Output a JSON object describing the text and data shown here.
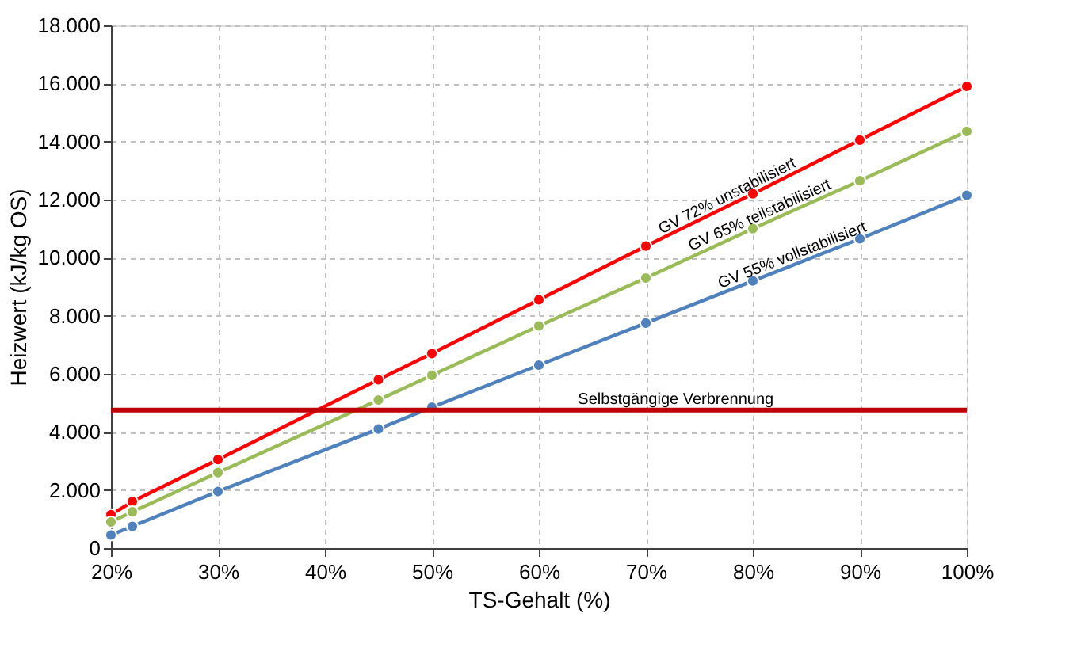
{
  "chart_data": {
    "type": "line",
    "xlabel": "TS-Gehalt (%)",
    "ylabel": "Heizwert (kJ/kg OS)",
    "x": [
      20,
      22,
      30,
      45,
      50,
      60,
      70,
      80,
      90,
      100
    ],
    "series": [
      {
        "name": "GV 72% unstabilisiert",
        "color": "#ff0000",
        "values": [
          1150,
          1600,
          3050,
          5800,
          6700,
          8550,
          10400,
          12200,
          14050,
          15900
        ]
      },
      {
        "name": "GV 65% teilstabilisiert",
        "color": "#9bbb59",
        "values": [
          900,
          1250,
          2600,
          5100,
          5950,
          7650,
          9300,
          11000,
          12650,
          14350
        ]
      },
      {
        "name": "GV 55% vollstabilisiert",
        "color": "#4f81bd",
        "values": [
          450,
          750,
          1950,
          4100,
          4850,
          6300,
          7750,
          9200,
          10650,
          12150
        ]
      }
    ],
    "xlim": [
      20,
      100
    ],
    "xticks": [
      {
        "value": 20,
        "label": "20%"
      },
      {
        "value": 30,
        "label": "30%"
      },
      {
        "value": 40,
        "label": "40%"
      },
      {
        "value": 50,
        "label": "50%"
      },
      {
        "value": 60,
        "label": "60%"
      },
      {
        "value": 70,
        "label": "70%"
      },
      {
        "value": 80,
        "label": "80%"
      },
      {
        "value": 90,
        "label": "90%"
      },
      {
        "value": 100,
        "label": "100%"
      }
    ],
    "ylim": [
      0,
      18000
    ],
    "yticks": [
      0,
      {
        "value": 2000,
        "label": "2.000"
      },
      {
        "value": 4000,
        "label": "4.000"
      },
      {
        "value": 6000,
        "label": "6.000"
      },
      {
        "value": 8000,
        "label": "8.000"
      },
      {
        "value": 10000,
        "label": "10.000"
      },
      {
        "value": 12000,
        "label": "12.000"
      },
      {
        "value": 14000,
        "label": "14.000"
      },
      {
        "value": 16000,
        "label": "16.000"
      },
      {
        "value": 18000,
        "label": "18.000"
      }
    ],
    "ref_lines": [
      {
        "axis": "y",
        "value": 4750,
        "label": "Selbstgängige Verbrennung",
        "color": "#c00000",
        "line_style": "solid"
      }
    ],
    "grid": true,
    "legend": false,
    "marker": "circle",
    "line_style": "solid"
  }
}
